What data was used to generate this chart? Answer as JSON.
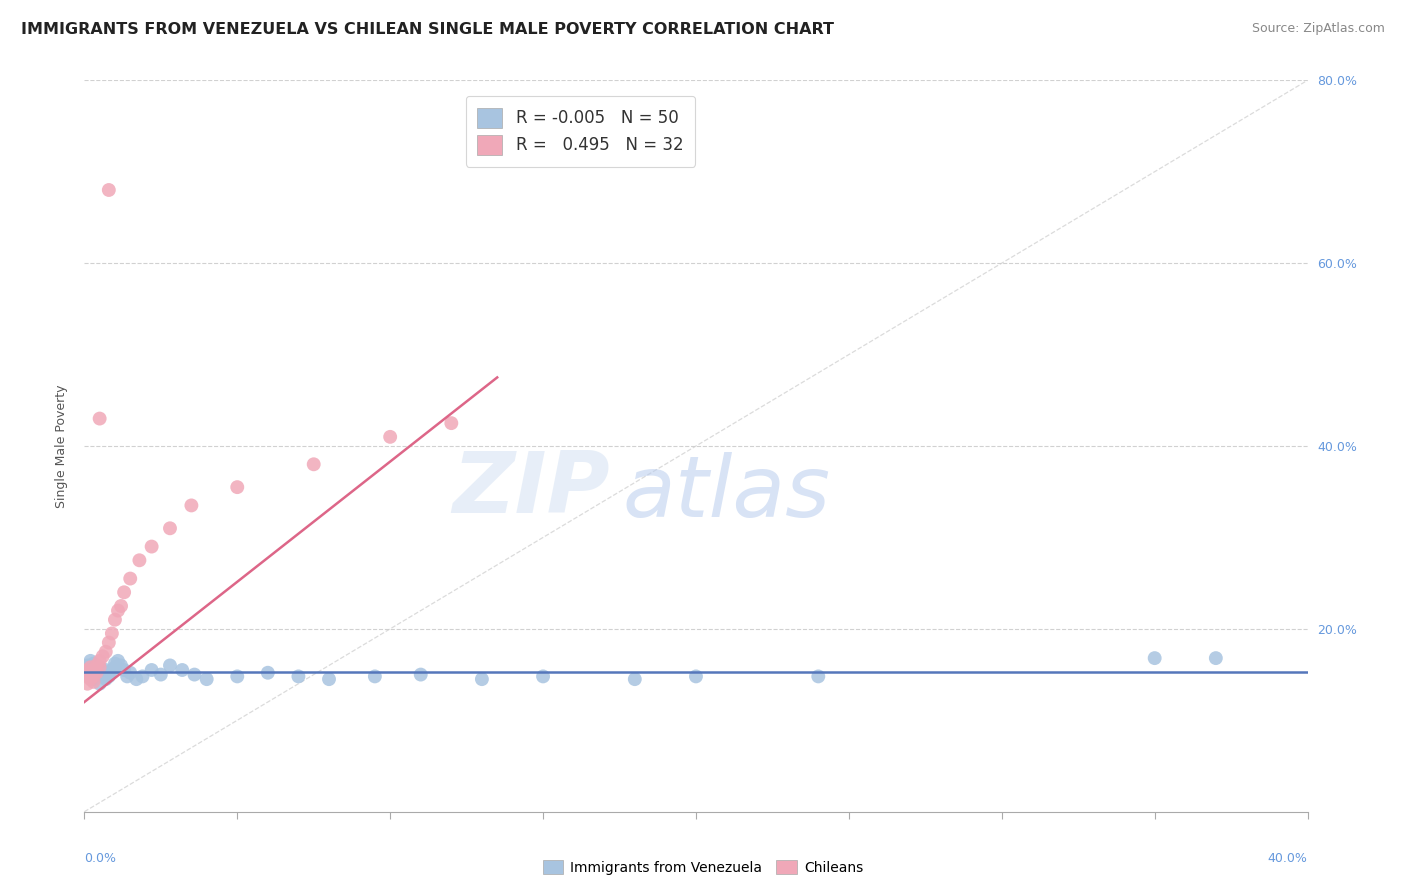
{
  "title": "IMMIGRANTS FROM VENEZUELA VS CHILEAN SINGLE MALE POVERTY CORRELATION CHART",
  "source": "Source: ZipAtlas.com",
  "ylabel": "Single Male Poverty",
  "xlim": [
    0.0,
    0.4
  ],
  "ylim": [
    0.0,
    0.8
  ],
  "blue_R": -0.005,
  "blue_N": 50,
  "pink_R": 0.495,
  "pink_N": 32,
  "blue_color": "#a8c4e0",
  "pink_color": "#f0a8b8",
  "blue_line_color": "#5577bb",
  "pink_line_color": "#dd6688",
  "blue_R_color": "#cc2244",
  "pink_R_color": "#cc7700",
  "grid_color": "#cccccc",
  "background_color": "#ffffff",
  "watermark_zip": "ZIP",
  "watermark_atlas": "atlas",
  "watermark_color_zip": "#d0ddf0",
  "watermark_color_atlas": "#b0c8e8",
  "title_color": "#222222",
  "axis_label_color": "#6699dd",
  "blue_scatter_x": [
    0.001,
    0.001,
    0.002,
    0.002,
    0.002,
    0.003,
    0.003,
    0.003,
    0.003,
    0.004,
    0.004,
    0.004,
    0.005,
    0.005,
    0.005,
    0.006,
    0.006,
    0.007,
    0.007,
    0.008,
    0.008,
    0.009,
    0.01,
    0.01,
    0.011,
    0.012,
    0.013,
    0.014,
    0.015,
    0.017,
    0.019,
    0.022,
    0.025,
    0.028,
    0.032,
    0.036,
    0.04,
    0.05,
    0.06,
    0.07,
    0.08,
    0.095,
    0.11,
    0.13,
    0.15,
    0.18,
    0.2,
    0.24,
    0.35,
    0.37
  ],
  "blue_scatter_y": [
    0.16,
    0.155,
    0.148,
    0.158,
    0.165,
    0.15,
    0.155,
    0.145,
    0.162,
    0.148,
    0.155,
    0.152,
    0.14,
    0.15,
    0.158,
    0.148,
    0.153,
    0.145,
    0.155,
    0.148,
    0.152,
    0.155,
    0.158,
    0.162,
    0.165,
    0.16,
    0.155,
    0.148,
    0.152,
    0.145,
    0.148,
    0.155,
    0.15,
    0.16,
    0.155,
    0.15,
    0.145,
    0.148,
    0.152,
    0.148,
    0.145,
    0.148,
    0.15,
    0.145,
    0.148,
    0.145,
    0.148,
    0.148,
    0.168,
    0.168
  ],
  "pink_scatter_x": [
    0.001,
    0.001,
    0.001,
    0.002,
    0.002,
    0.002,
    0.003,
    0.003,
    0.003,
    0.004,
    0.004,
    0.005,
    0.005,
    0.006,
    0.007,
    0.008,
    0.009,
    0.01,
    0.011,
    0.012,
    0.013,
    0.015,
    0.018,
    0.022,
    0.028,
    0.035,
    0.05,
    0.075,
    0.1,
    0.12,
    0.005,
    0.008
  ],
  "pink_scatter_y": [
    0.14,
    0.148,
    0.155,
    0.145,
    0.152,
    0.158,
    0.142,
    0.148,
    0.155,
    0.152,
    0.16,
    0.158,
    0.165,
    0.17,
    0.175,
    0.185,
    0.195,
    0.21,
    0.22,
    0.225,
    0.24,
    0.255,
    0.275,
    0.29,
    0.31,
    0.335,
    0.355,
    0.38,
    0.41,
    0.425,
    0.43,
    0.68
  ],
  "pink_line_x0": 0.0,
  "pink_line_y0": 0.12,
  "pink_line_x1": 0.135,
  "pink_line_y1": 0.475,
  "blue_line_y": 0.153,
  "diag_line_color": "#bbbbbb",
  "legend_R_blue_color": "#cc2244",
  "legend_R_pink_color": "#dd8800"
}
